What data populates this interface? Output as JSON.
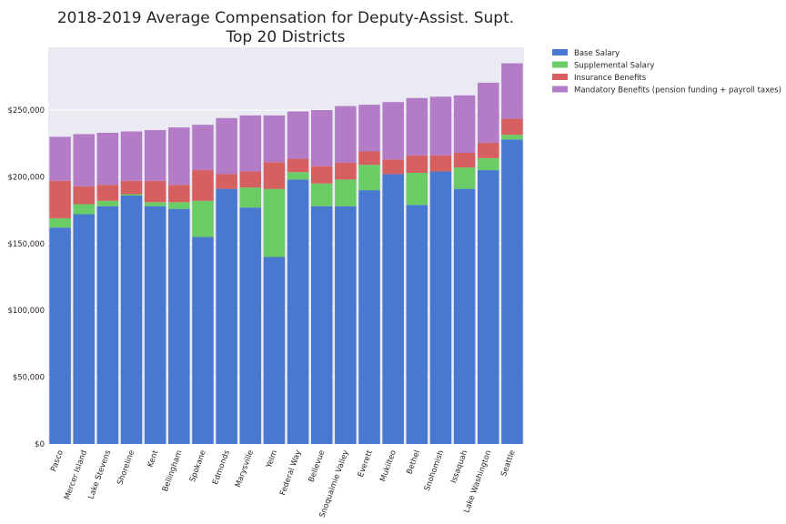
{
  "chart_data": {
    "type": "bar",
    "stacked": true,
    "title": [
      "2018-2019 Average Compensation for Deputy-Assist. Supt.",
      "Top 20 Districts"
    ],
    "xlabel": "",
    "ylabel": "",
    "ylim": [
      0,
      297000
    ],
    "yticks": [
      {
        "value": 0,
        "label": "$0"
      },
      {
        "value": 50000,
        "label": "$50,000"
      },
      {
        "value": 100000,
        "label": "$100,000"
      },
      {
        "value": 150000,
        "label": "$150,000"
      },
      {
        "value": 200000,
        "label": "$200,000"
      },
      {
        "value": 250000,
        "label": "$250,000"
      }
    ],
    "grid": true,
    "legend_position": "outside-top-right",
    "categories": [
      "Pasco",
      "Mercer Island",
      "Lake Stevens",
      "Shoreline",
      "Kent",
      "Bellingham",
      "Spokane",
      "Edmonds",
      "Marysville",
      "Yelm",
      "Federal Way",
      "Bellevue",
      "Snoqualmie Valley",
      "Everett",
      "Mukilteo",
      "Bethel",
      "Snohomish",
      "Issaquah",
      "Lake Washington",
      "Seattle"
    ],
    "series": [
      {
        "name": "Base Salary",
        "color": "#4878cf",
        "values": [
          162000,
          172000,
          178000,
          186000,
          178000,
          176000,
          155000,
          191000,
          177000,
          140000,
          198000,
          178000,
          178000,
          190000,
          202000,
          179000,
          204000,
          191000,
          205000,
          228000
        ]
      },
      {
        "name": "Supplemental Salary",
        "color": "#6acc65",
        "values": [
          7000,
          7500,
          4000,
          1000,
          3000,
          5000,
          27000,
          0,
          15000,
          51000,
          5500,
          17000,
          20000,
          19000,
          0,
          24000,
          0,
          16000,
          9000,
          3500
        ]
      },
      {
        "name": "Insurance Benefits",
        "color": "#d65f5f",
        "values": [
          28000,
          13500,
          12000,
          10000,
          16000,
          13000,
          23000,
          11000,
          12000,
          20000,
          10000,
          13000,
          12500,
          10000,
          11000,
          13000,
          12000,
          11000,
          11500,
          12000
        ]
      },
      {
        "name": "Mandatory Benefits (pension funding + payroll taxes)",
        "color": "#b47cc7",
        "values": [
          33000,
          39000,
          39000,
          37000,
          38000,
          43000,
          34000,
          42000,
          42000,
          35000,
          35500,
          42000,
          42500,
          35000,
          43000,
          43000,
          44000,
          43000,
          45000,
          41500
        ]
      }
    ]
  }
}
